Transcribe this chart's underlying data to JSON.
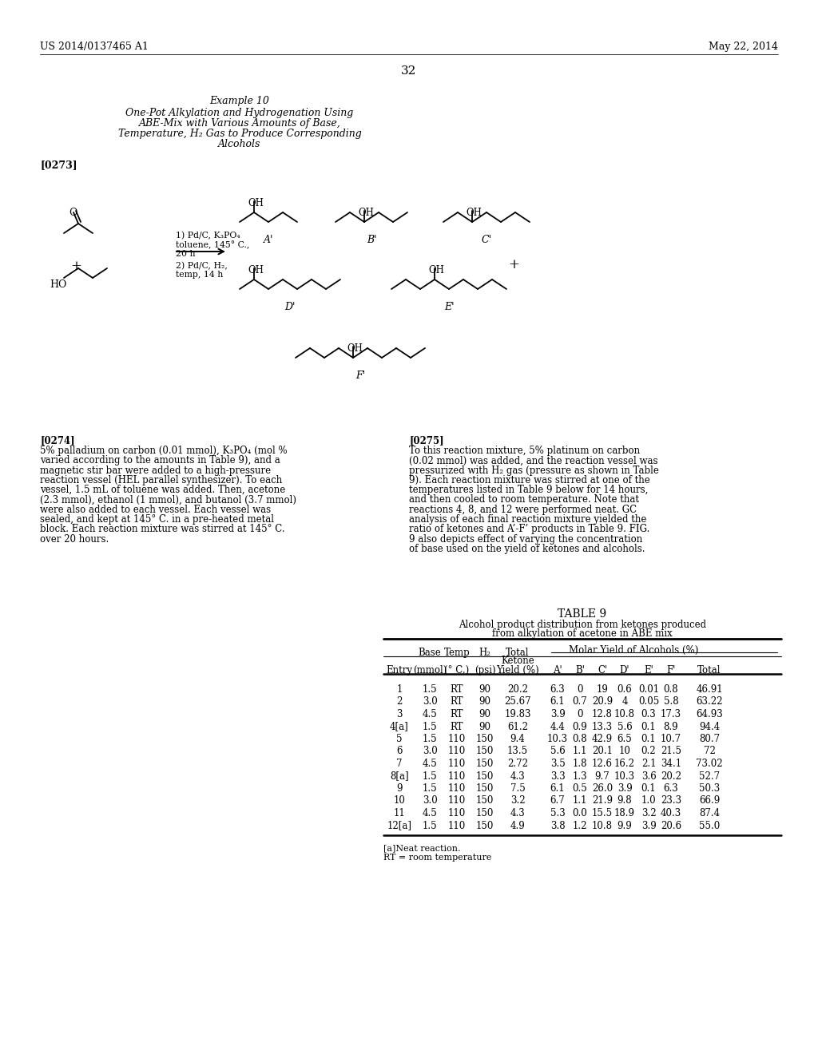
{
  "page_number": "32",
  "patent_number": "US 2014/0137465 A1",
  "patent_date": "May 22, 2014",
  "example_title": "Example 10",
  "example_subtitle_lines": [
    "One-Pot Alkylation and Hydrogenation Using",
    "ABE-Mix with Various Amounts of Base,",
    "Temperature, H₂ Gas to Produce Corresponding",
    "Alcohols"
  ],
  "paragraph_273": "[0273]",
  "paragraph_274_label": "[0274]",
  "paragraph_274_text": "5% palladium on carbon (0.01 mmol), K₃PO₄ (mol % varied according to the amounts in Table 9), and a magnetic stir bar were added to a high-pressure reaction vessel (HEL parallel synthesizer). To each vessel, 1.5 mL of toluene was added. Then, acetone (2.3 mmol), ethanol (1 mmol), and butanol (3.7 mmol) were also added to each vessel. Each vessel was sealed, and kept at 145° C. in a pre-heated metal block. Each reaction mixture was stirred at 145° C. over 20 hours.",
  "paragraph_275_label": "[0275]",
  "paragraph_275_text": "To this reaction mixture, 5% platinum on carbon (0.02 mmol) was added, and the reaction vessel was pressurized with H₂ gas (pressure as shown in Table 9). Each reaction mixture was stirred at one of the temperatures listed in Table 9 below for 14 hours, and then cooled to room temperature. Note that reactions 4, 8, and 12 were performed neat. GC analysis of each final reaction mixture yielded the ratio of ketones and A’-F’ products in Table 9. FIG. 9 also depicts effect of varying the concentration of base used on the yield of ketones and alcohols.",
  "table_title": "TABLE 9",
  "table_caption1": "Alcohol product distribution from ketones produced",
  "table_caption2": "from alkylation of acetone in ABE mix",
  "molar_yield_header": "Molar Yield of Alcohols (%)",
  "table_data": [
    [
      "1",
      "1.5",
      "RT",
      "90",
      "20.2",
      "6.3",
      "0",
      "19",
      "0.6",
      "0.01",
      "0.8",
      "46.91"
    ],
    [
      "2",
      "3.0",
      "RT",
      "90",
      "25.67",
      "6.1",
      "0.7",
      "20.9",
      "4",
      "0.05",
      "5.8",
      "63.22"
    ],
    [
      "3",
      "4.5",
      "RT",
      "90",
      "19.83",
      "3.9",
      "0",
      "12.8",
      "10.8",
      "0.3",
      "17.3",
      "64.93"
    ],
    [
      "4[a]",
      "1.5",
      "RT",
      "90",
      "61.2",
      "4.4",
      "0.9",
      "13.3",
      "5.6",
      "0.1",
      "8.9",
      "94.4"
    ],
    [
      "5",
      "1.5",
      "110",
      "150",
      "9.4",
      "10.3",
      "0.8",
      "42.9",
      "6.5",
      "0.1",
      "10.7",
      "80.7"
    ],
    [
      "6",
      "3.0",
      "110",
      "150",
      "13.5",
      "5.6",
      "1.1",
      "20.1",
      "10",
      "0.2",
      "21.5",
      "72"
    ],
    [
      "7",
      "4.5",
      "110",
      "150",
      "2.72",
      "3.5",
      "1.8",
      "12.6",
      "16.2",
      "2.1",
      "34.1",
      "73.02"
    ],
    [
      "8[a]",
      "1.5",
      "110",
      "150",
      "4.3",
      "3.3",
      "1.3",
      "9.7",
      "10.3",
      "3.6",
      "20.2",
      "52.7"
    ],
    [
      "9",
      "1.5",
      "110",
      "150",
      "7.5",
      "6.1",
      "0.5",
      "26.0",
      "3.9",
      "0.1",
      "6.3",
      "50.3"
    ],
    [
      "10",
      "3.0",
      "110",
      "150",
      "3.2",
      "6.7",
      "1.1",
      "21.9",
      "9.8",
      "1.0",
      "23.3",
      "66.9"
    ],
    [
      "11",
      "4.5",
      "110",
      "150",
      "4.3",
      "5.3",
      "0.0",
      "15.5",
      "18.9",
      "3.2",
      "40.3",
      "87.4"
    ],
    [
      "12[a]",
      "1.5",
      "110",
      "150",
      "4.9",
      "3.8",
      "1.2",
      "10.8",
      "9.9",
      "3.9",
      "20.6",
      "55.0"
    ]
  ],
  "footnote_a": "[a]Neat reaction.",
  "footnote_rt": "RT = room temperature",
  "bg_color": "#ffffff"
}
